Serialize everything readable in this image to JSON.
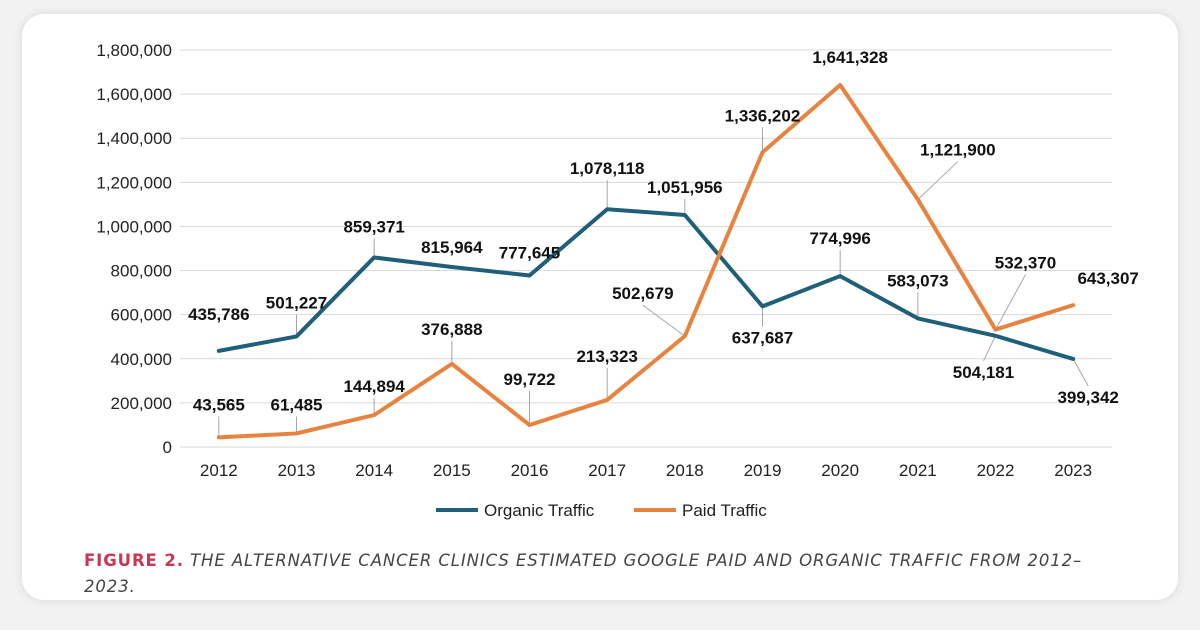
{
  "chart_data": {
    "type": "line",
    "categories": [
      "2012",
      "2013",
      "2014",
      "2015",
      "2016",
      "2017",
      "2018",
      "2019",
      "2020",
      "2021",
      "2022",
      "2023"
    ],
    "series": [
      {
        "name": "Organic Traffic",
        "color": "#1f5f7a",
        "values": [
          435786,
          501227,
          859371,
          815964,
          777645,
          1078118,
          1051956,
          637687,
          774996,
          583073,
          504181,
          399342
        ],
        "labels": [
          "435,786",
          "501,227",
          "859,371",
          "815,964",
          "777,645",
          "1,078,118",
          "1,051,956",
          "637,687",
          "774,996",
          "583,073",
          "504,181",
          "399,342"
        ]
      },
      {
        "name": "Paid Traffic",
        "color": "#e8823f",
        "values": [
          43565,
          61485,
          144894,
          376888,
          99722,
          213323,
          502679,
          1336202,
          1641328,
          1121900,
          532370,
          643307
        ],
        "labels": [
          "43,565",
          "61,485",
          "144,894",
          "376,888",
          "99,722",
          "213,323",
          "502,679",
          "1,336,202",
          "1,641,328",
          "1,121,900",
          "532,370",
          "643,307"
        ]
      }
    ],
    "ylim": [
      0,
      1800000
    ],
    "yticks": [
      0,
      200000,
      400000,
      600000,
      800000,
      1000000,
      1200000,
      1400000,
      1600000,
      1800000
    ],
    "ytick_labels": [
      "0",
      "200,000",
      "400,000",
      "600,000",
      "800,000",
      "1,000,000",
      "1,200,000",
      "1,400,000",
      "1,600,000",
      "1,800,000"
    ],
    "grid": true,
    "legend": "bottom-center"
  },
  "caption": {
    "prefix": "FIGURE 2.",
    "text": " THE ALTERNATIVE CANCER CLINICS ESTIMATED GOOGLE PAID AND ORGANIC TRAFFIC FROM 2012–2023."
  }
}
